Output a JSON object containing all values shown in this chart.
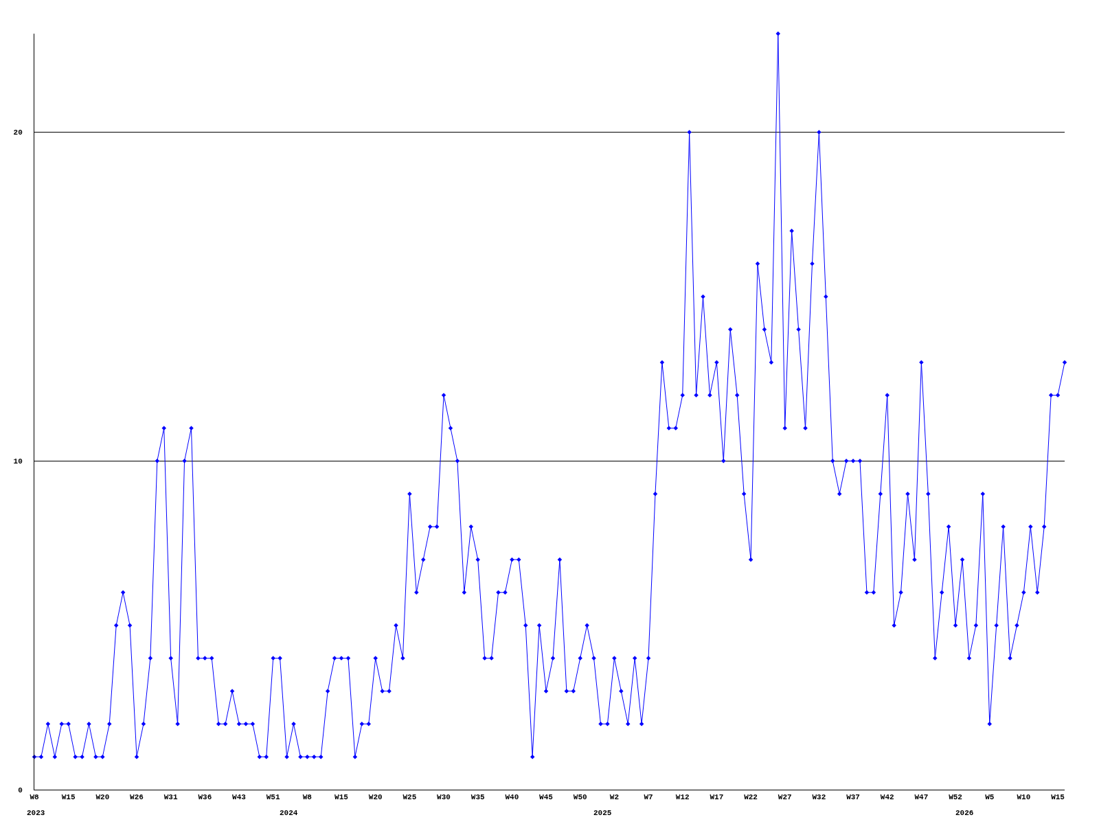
{
  "chart_data": {
    "type": "line",
    "categories": [
      "W8",
      null,
      null,
      null,
      null,
      "W15",
      null,
      null,
      null,
      null,
      "W20",
      null,
      null,
      null,
      null,
      "W26",
      null,
      null,
      null,
      null,
      "W31",
      null,
      null,
      null,
      null,
      "W36",
      null,
      null,
      null,
      null,
      "W43",
      null,
      null,
      null,
      null,
      "W51",
      null,
      null,
      null,
      null,
      "W8",
      null,
      null,
      null,
      null,
      "W15",
      null,
      null,
      null,
      null,
      "W20",
      null,
      null,
      null,
      null,
      "W25",
      null,
      null,
      null,
      null,
      "W30",
      null,
      null,
      null,
      null,
      "W35",
      null,
      null,
      null,
      null,
      "W40",
      null,
      null,
      null,
      null,
      "W45",
      null,
      null,
      null,
      null,
      "W50",
      null,
      null,
      null,
      null,
      "W2",
      null,
      null,
      null,
      null,
      "W7",
      null,
      null,
      null,
      null,
      "W12",
      null,
      null,
      null,
      null,
      "W17",
      null,
      null,
      null,
      null,
      "W22",
      null,
      null,
      null,
      null,
      "W27",
      null,
      null,
      null,
      null,
      "W32",
      null,
      null,
      null,
      null,
      "W37",
      null,
      null,
      null,
      null,
      "W42",
      null,
      null,
      null,
      null,
      "W47",
      null,
      null,
      null,
      null,
      "W52",
      null,
      null,
      null,
      null,
      "W5",
      null,
      null,
      null,
      null,
      "W10",
      null,
      null,
      null,
      null,
      "W15",
      null
    ],
    "series": [
      {
        "color": "#0000ff",
        "values": [
          1,
          1,
          2,
          1,
          2,
          2,
          1,
          1,
          2,
          1,
          1,
          2,
          5,
          6,
          5,
          1,
          2,
          4,
          10,
          11,
          4,
          2,
          10,
          11,
          4,
          4,
          4,
          2,
          2,
          3,
          2,
          2,
          2,
          1,
          1,
          4,
          4,
          1,
          2,
          1,
          1,
          1,
          1,
          3,
          4,
          4,
          4,
          1,
          2,
          2,
          4,
          3,
          3,
          5,
          4,
          9,
          6,
          7,
          8,
          8,
          12,
          11,
          10,
          6,
          8,
          7,
          4,
          4,
          6,
          6,
          7,
          7,
          5,
          1,
          5,
          3,
          4,
          7,
          3,
          3,
          4,
          5,
          4,
          2,
          2,
          4,
          3,
          2,
          4,
          2,
          4,
          9,
          13,
          11,
          11,
          12,
          20,
          12,
          15,
          12,
          13,
          10,
          14,
          12,
          9,
          7,
          16,
          14,
          13,
          23,
          11,
          17,
          14,
          11,
          16,
          20,
          15,
          10,
          9,
          10,
          10,
          10,
          6,
          6,
          9,
          12,
          5,
          6,
          9,
          7,
          13,
          9,
          4,
          6,
          8,
          5,
          7,
          4,
          5,
          9,
          2,
          5,
          8,
          4,
          5,
          6,
          8,
          6,
          8,
          12,
          12,
          13
        ]
      }
    ],
    "annotations": [
      "2023",
      "2024",
      "2025",
      "2026"
    ],
    "ylim": [
      0,
      23
    ],
    "yticks": [
      0,
      10,
      20
    ],
    "grid": "y",
    "marker": "diamond",
    "line_style": "solid"
  }
}
